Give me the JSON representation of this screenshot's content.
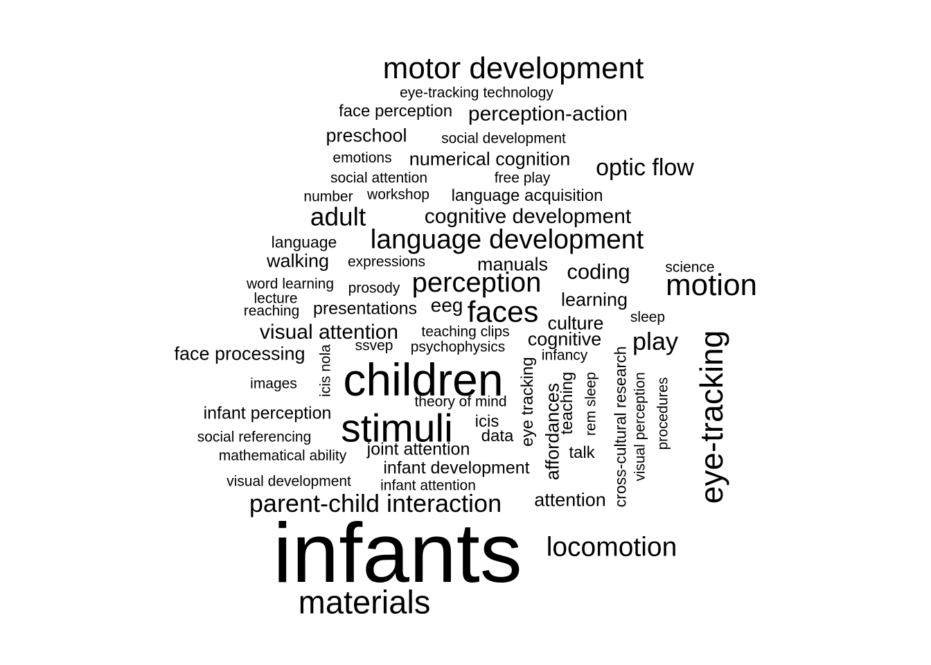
{
  "words": [
    {
      "text": "infants"
    },
    {
      "text": "children"
    },
    {
      "text": "stimuli"
    },
    {
      "text": "eye-tracking"
    },
    {
      "text": "materials"
    },
    {
      "text": "motor development"
    },
    {
      "text": "motion"
    },
    {
      "text": "language development"
    },
    {
      "text": "perception"
    },
    {
      "text": "faces"
    },
    {
      "text": "locomotion"
    },
    {
      "text": "parent-child interaction"
    },
    {
      "text": "optic flow"
    },
    {
      "text": "adult"
    },
    {
      "text": "play"
    },
    {
      "text": "perception-action"
    },
    {
      "text": "cognitive development"
    },
    {
      "text": "coding"
    },
    {
      "text": "visual attention"
    },
    {
      "text": "numerical cognition"
    },
    {
      "text": "preschool"
    },
    {
      "text": "learning"
    },
    {
      "text": "culture"
    },
    {
      "text": "cognitive"
    },
    {
      "text": "attention"
    },
    {
      "text": "face processing"
    },
    {
      "text": "infant perception"
    },
    {
      "text": "infant development"
    },
    {
      "text": "language acquisition"
    },
    {
      "text": "presentations"
    },
    {
      "text": "joint attention"
    },
    {
      "text": "manuals"
    },
    {
      "text": "walking"
    },
    {
      "text": "eeg"
    },
    {
      "text": "face perception"
    },
    {
      "text": "eye-tracking technology"
    },
    {
      "text": "social development"
    },
    {
      "text": "social attention"
    },
    {
      "text": "emotions"
    },
    {
      "text": "free play"
    },
    {
      "text": "number"
    },
    {
      "text": "workshop"
    },
    {
      "text": "language"
    },
    {
      "text": "expressions"
    },
    {
      "text": "science"
    },
    {
      "text": "word learning"
    },
    {
      "text": "prosody"
    },
    {
      "text": "lecture"
    },
    {
      "text": "reaching"
    },
    {
      "text": "sleep"
    },
    {
      "text": "teaching clips"
    },
    {
      "text": "ssvep"
    },
    {
      "text": "psychophysics"
    },
    {
      "text": "infancy"
    },
    {
      "text": "images"
    },
    {
      "text": "theory of mind"
    },
    {
      "text": "icis"
    },
    {
      "text": "data"
    },
    {
      "text": "social referencing"
    },
    {
      "text": "mathematical ability"
    },
    {
      "text": "talk"
    },
    {
      "text": "visual development"
    },
    {
      "text": "infant attention"
    },
    {
      "text": "icis nola"
    },
    {
      "text": "eye tracking"
    },
    {
      "text": "affordances"
    },
    {
      "text": "teaching"
    },
    {
      "text": "rem sleep"
    },
    {
      "text": "cross-cultural research"
    },
    {
      "text": "visual perception"
    },
    {
      "text": "procedures"
    }
  ]
}
